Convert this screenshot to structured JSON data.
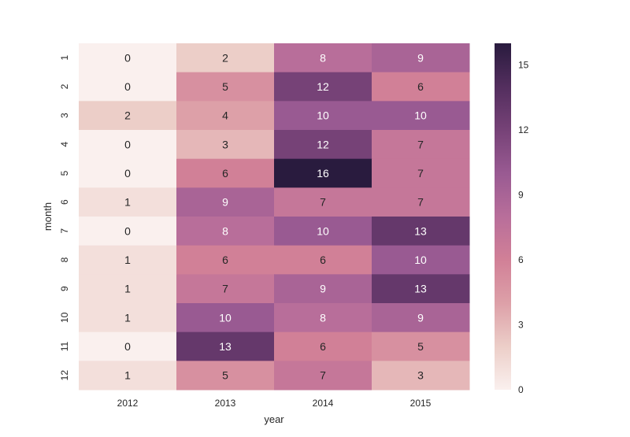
{
  "chart_data": {
    "type": "heatmap",
    "title": "",
    "xlabel": "year",
    "ylabel": "month",
    "x_categories": [
      "2012",
      "2013",
      "2014",
      "2015"
    ],
    "y_categories": [
      "1",
      "2",
      "3",
      "4",
      "5",
      "6",
      "7",
      "8",
      "9",
      "10",
      "11",
      "12"
    ],
    "values": [
      [
        0,
        2,
        8,
        9
      ],
      [
        0,
        5,
        12,
        6
      ],
      [
        2,
        4,
        10,
        10
      ],
      [
        0,
        3,
        12,
        7
      ],
      [
        0,
        6,
        16,
        7
      ],
      [
        1,
        9,
        7,
        7
      ],
      [
        0,
        8,
        10,
        13
      ],
      [
        1,
        6,
        6,
        10
      ],
      [
        1,
        7,
        9,
        13
      ],
      [
        1,
        10,
        8,
        9
      ],
      [
        0,
        13,
        6,
        5
      ],
      [
        1,
        5,
        7,
        3
      ]
    ],
    "colorbar": {
      "min": 0,
      "max": 16,
      "ticks": [
        0,
        3,
        6,
        9,
        12,
        15
      ],
      "colormap": "cubehelix-pink-purple",
      "color_low": "#faf0ee",
      "color_high": "#2a1b3e"
    },
    "annotations": true,
    "grid": false,
    "legend": "colorbar-right"
  }
}
